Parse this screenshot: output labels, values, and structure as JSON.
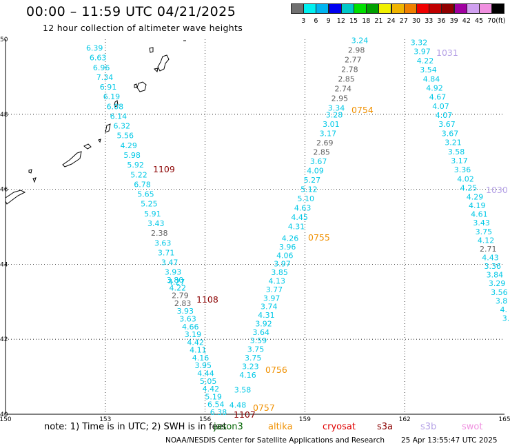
{
  "header": {
    "title": "00:00 – 11:59 UTC 04/21/2025",
    "subtitle": "12 hour collection of altimeter wave heights"
  },
  "colorbar": {
    "colors": [
      "#707070",
      "#00f0f0",
      "#00b4f0",
      "#0000f0",
      "#00c8c8",
      "#00e000",
      "#00a000",
      "#f0f000",
      "#f0b400",
      "#f08000",
      "#f00000",
      "#c00000",
      "#900000",
      "#a000a0",
      "#d0a0f0",
      "#f090e0",
      "#000000"
    ],
    "labels": [
      "3",
      "6",
      "9",
      "12",
      "15",
      "18",
      "21",
      "24",
      "27",
      "30",
      "33",
      "36",
      "39",
      "42",
      "45",
      "70"
    ],
    "unit": "(ft)"
  },
  "axes": {
    "lon_ticks": [
      "150",
      "153",
      "156",
      "159",
      "162",
      "165"
    ],
    "lat_ticks": [
      "50",
      "48",
      "46",
      "44",
      "42",
      "40"
    ]
  },
  "colors": {
    "cyan": "#00c8e6",
    "gray": "#606060",
    "dark_red": "#8b0000",
    "orange": "#f09000",
    "lavender": "#b4a0e6"
  },
  "tracks": [
    {
      "time": "1109",
      "values": [
        "6.39",
        "6.63",
        "6.96",
        "7.34",
        "6.91",
        "6.19",
        "6.08",
        "6.14",
        "6.32",
        "5.56",
        "4.29",
        "5.98",
        "5.92",
        "5.22",
        "6.78",
        "5.65",
        "5.25",
        "5.91",
        "3.43",
        "2.38",
        "3.63",
        "3.71",
        "3.47",
        "3.93",
        "4.27"
      ]
    },
    {
      "time": "1108",
      "values": [
        "3.80",
        "4.22",
        "2.79",
        "2.83",
        "3.93",
        "3.63",
        "4.66",
        "3.19",
        "4.42",
        "4.11",
        "4.16",
        "3.95",
        "4.44",
        "5.05",
        "4.42",
        "5.19",
        "6.54",
        "6.38"
      ]
    },
    {
      "time": "1107",
      "values": [
        "4.48"
      ]
    },
    {
      "time": "0757",
      "values": [
        "3.58"
      ]
    },
    {
      "time": "0756",
      "values": [
        "4.16",
        "3.23",
        "3.75",
        "3.75",
        "3.59",
        "3.64",
        "3.92",
        "4.31",
        "3.74",
        "3.97",
        "3.77",
        "4.13",
        "3.85",
        "3.97",
        "4.06",
        "3.96",
        "4.26"
      ]
    },
    {
      "time": "0755",
      "values": [
        "4.31",
        "4.45",
        "4.63",
        "5.10",
        "5.12",
        "5.27",
        "4.09",
        "3.67",
        "2.85",
        "2.69",
        "3.17",
        "3.01",
        "3.28"
      ]
    },
    {
      "time": "0754",
      "values": [
        "3.34",
        "2.95",
        "2.74",
        "2.85",
        "2.78",
        "2.77",
        "2.98",
        "3.24"
      ]
    },
    {
      "time": "1031",
      "values": [
        "3.32",
        "3.97",
        "4.22",
        "3.54",
        "4.84",
        "4.92",
        "4.67",
        "4.07",
        "4.07",
        "3.67",
        "3.67",
        "3.21",
        "3.58",
        "3.17",
        "3.36",
        "4.02",
        "4.25"
      ]
    },
    {
      "time": "1030",
      "values": [
        "4.29",
        "4.19",
        "4.61",
        "3.43",
        "3.75",
        "4.12",
        "2.71",
        "4.43",
        "3.36",
        "3.84",
        "3.29",
        "3.56",
        "3.8",
        "4.",
        "3."
      ]
    }
  ],
  "footer": {
    "note": "note: 1) Time is in UTC; 2) SWH is in feet",
    "satellites": [
      {
        "name": "jason3",
        "color": "#006400"
      },
      {
        "name": "altika",
        "color": "#f09000"
      },
      {
        "name": "cryosat",
        "color": "#e00000"
      },
      {
        "name": "s3a",
        "color": "#8b0000"
      },
      {
        "name": "s3b",
        "color": "#b4a0e6"
      },
      {
        "name": "swot",
        "color": "#f090e0"
      }
    ],
    "credit": "NOAA/NESDIS Center for Satellite Applications and Research",
    "timestamp": "25 Apr 13:55:47 UTC 2025"
  }
}
